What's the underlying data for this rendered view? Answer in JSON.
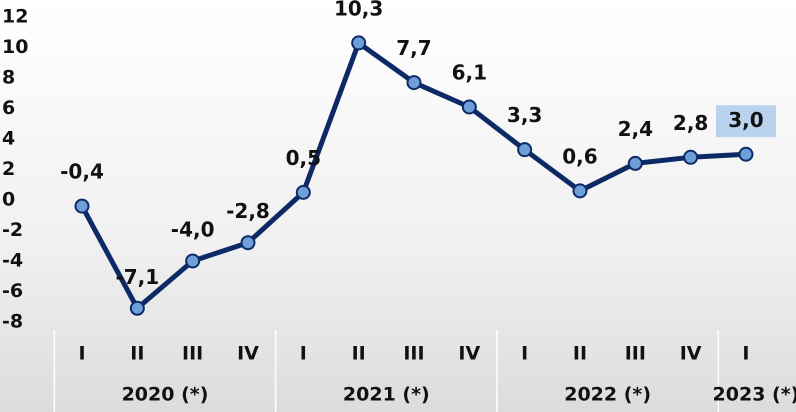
{
  "chart_data": {
    "type": "line",
    "groups": [
      {
        "label": "2020 (*)",
        "categories": [
          "I",
          "II",
          "III",
          "IV"
        ]
      },
      {
        "label": "2021 (*)",
        "categories": [
          "I",
          "II",
          "III",
          "IV"
        ]
      },
      {
        "label": "2022 (*)",
        "categories": [
          "I",
          "II",
          "III",
          "IV"
        ]
      },
      {
        "label": "2023 (*)",
        "categories": [
          "I"
        ]
      }
    ],
    "values": [
      -0.4,
      -7.1,
      -4.0,
      -2.8,
      0.5,
      10.3,
      7.7,
      6.1,
      3.3,
      0.6,
      2.4,
      2.8,
      3.0
    ],
    "value_labels": [
      "-0,4",
      "-7,1",
      "-4,0",
      "-2,8",
      "0,5",
      "10,3",
      "7,7",
      "6,1",
      "3,3",
      "0,6",
      "2,4",
      "2,8",
      "3,0"
    ],
    "color": "#0d2a66",
    "marker_color": "#6e9fd9",
    "ylim": [
      -8,
      12
    ],
    "yticks": [
      12,
      10,
      8,
      6,
      4,
      2,
      0,
      -2,
      -4,
      -6,
      -8
    ]
  }
}
